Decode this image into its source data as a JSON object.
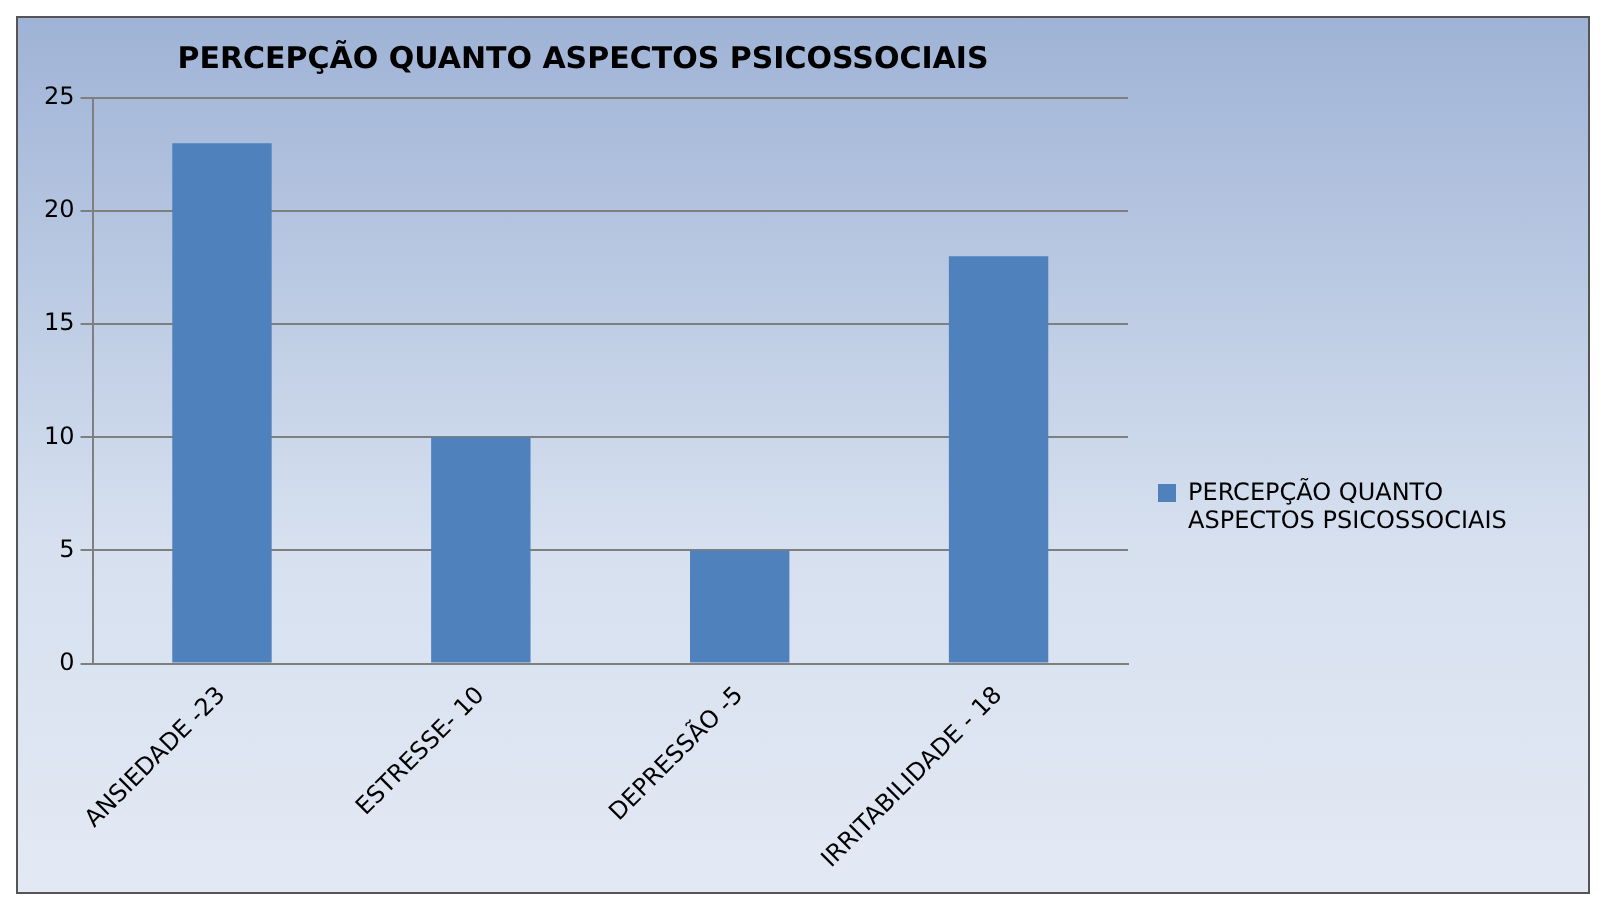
{
  "chart_data": {
    "type": "bar",
    "title": "PERCEPÇÃO QUANTO ASPECTOS PSICOSSOCIAIS",
    "categories": [
      "ANSIEDADE -23",
      "ESTRESSE- 10",
      "DEPRESSÃO -5",
      "IRRITABILIDADE - 18"
    ],
    "series": [
      {
        "name": "PERCEPÇÃO QUANTO ASPECTOS PSICOSSOCIAIS",
        "color": "#4f81bd",
        "values": [
          23,
          10,
          5,
          18
        ]
      }
    ],
    "ylim": [
      0,
      25
    ],
    "yticks": [
      0,
      5,
      10,
      15,
      20,
      25
    ],
    "grid": "y",
    "legend": "right"
  }
}
